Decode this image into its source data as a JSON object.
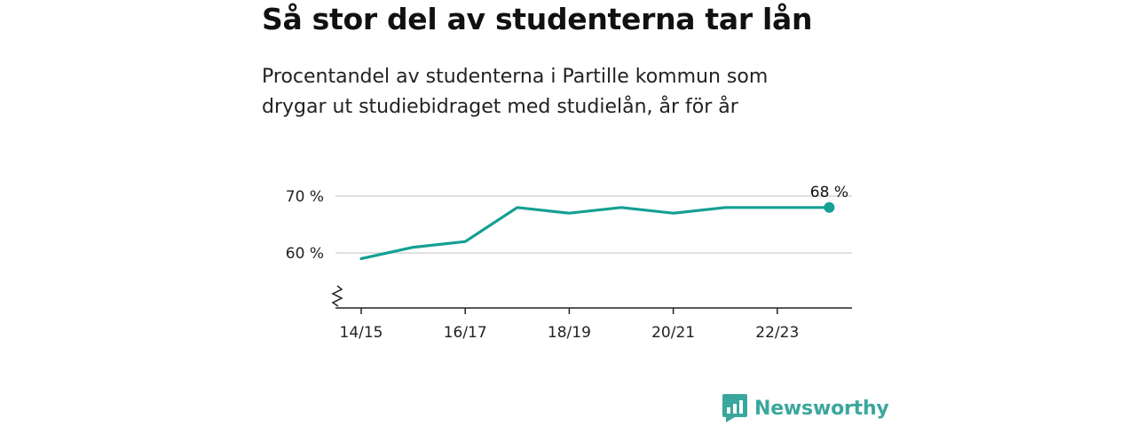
{
  "title": "Så stor del av studenterna tar lån",
  "subtitle": "Procentandel av studenterna i Partille kommun som drygar ut studiebidraget med studielån, år för år",
  "chart_data": {
    "type": "line",
    "x": [
      "14/15",
      "15/16",
      "16/17",
      "17/18",
      "18/19",
      "19/20",
      "20/21",
      "21/22",
      "22/23",
      "23/24"
    ],
    "series": [
      {
        "values": [
          59,
          61,
          62,
          68,
          67,
          68,
          67,
          68,
          68,
          68
        ]
      }
    ],
    "x_tick_labels": [
      "14/15",
      "16/17",
      "18/19",
      "20/21",
      "22/23"
    ],
    "y_ticks": [
      60,
      70
    ],
    "y_tick_labels": [
      "60 %",
      "70 %"
    ],
    "ylim": [
      50,
      72
    ],
    "y_axis_break": true,
    "end_label": "68 %",
    "grid": "horizontal",
    "xlabel": "",
    "ylabel": "",
    "color": "#14a093"
  },
  "brand": {
    "name": "Newsworthy",
    "color": "#3aa79d"
  }
}
